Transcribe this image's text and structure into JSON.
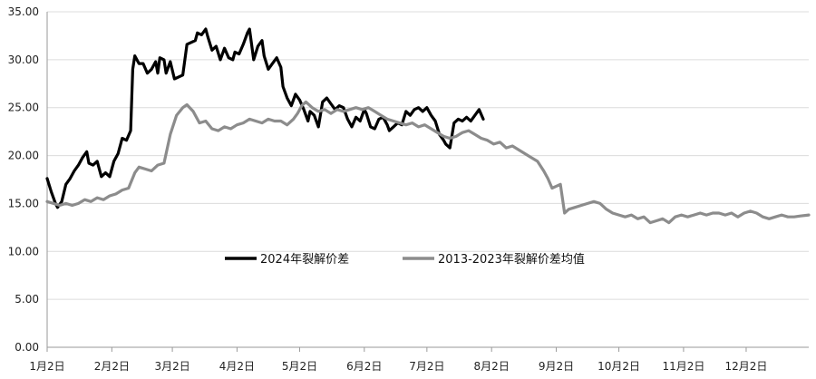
{
  "chart_data": {
    "type": "line",
    "title": "",
    "xlabel": "",
    "ylabel": "",
    "ylim": [
      0,
      35
    ],
    "yticks": [
      "0.00",
      "5.00",
      "10.00",
      "15.00",
      "20.00",
      "25.00",
      "30.00",
      "35.00"
    ],
    "xlim": [
      0,
      365
    ],
    "x_ticks": [
      {
        "label": "1月2日",
        "day": 0
      },
      {
        "label": "2月2日",
        "day": 31
      },
      {
        "label": "3月2日",
        "day": 60
      },
      {
        "label": "4月2日",
        "day": 91
      },
      {
        "label": "5月2日",
        "day": 121
      },
      {
        "label": "6月2日",
        "day": 152
      },
      {
        "label": "7月2日",
        "day": 182
      },
      {
        "label": "8月2日",
        "day": 213
      },
      {
        "label": "9月2日",
        "day": 244
      },
      {
        "label": "10月2日",
        "day": 274
      },
      {
        "label": "11月2日",
        "day": 305
      },
      {
        "label": "12月2日",
        "day": 335
      }
    ],
    "grid": "horizontal",
    "legend_position": "center",
    "series": [
      {
        "name": "2024年裂解价差",
        "color": "#000000",
        "points": [
          [
            0,
            17.6
          ],
          [
            2,
            16.2
          ],
          [
            4,
            15.0
          ],
          [
            5,
            14.6
          ],
          [
            7,
            15.2
          ],
          [
            9,
            17.0
          ],
          [
            11,
            17.6
          ],
          [
            13,
            18.4
          ],
          [
            15,
            19.0
          ],
          [
            17,
            19.8
          ],
          [
            19,
            20.4
          ],
          [
            20,
            19.2
          ],
          [
            22,
            19.0
          ],
          [
            24,
            19.4
          ],
          [
            26,
            17.8
          ],
          [
            28,
            18.2
          ],
          [
            30,
            17.8
          ],
          [
            32,
            19.4
          ],
          [
            34,
            20.2
          ],
          [
            36,
            21.8
          ],
          [
            38,
            21.6
          ],
          [
            40,
            22.6
          ],
          [
            41,
            29.0
          ],
          [
            42,
            30.4
          ],
          [
            44,
            29.6
          ],
          [
            46,
            29.6
          ],
          [
            48,
            28.6
          ],
          [
            50,
            29.0
          ],
          [
            52,
            29.8
          ],
          [
            53,
            28.6
          ],
          [
            54,
            30.2
          ],
          [
            56,
            30.0
          ],
          [
            57,
            28.6
          ],
          [
            59,
            29.8
          ],
          [
            61,
            28.0
          ],
          [
            63,
            28.2
          ],
          [
            65,
            28.4
          ],
          [
            67,
            31.6
          ],
          [
            69,
            31.8
          ],
          [
            71,
            32.0
          ],
          [
            72,
            32.8
          ],
          [
            74,
            32.6
          ],
          [
            76,
            33.2
          ],
          [
            77,
            32.4
          ],
          [
            79,
            31.0
          ],
          [
            81,
            31.4
          ],
          [
            83,
            30.0
          ],
          [
            85,
            31.2
          ],
          [
            87,
            30.2
          ],
          [
            89,
            30.0
          ],
          [
            90,
            30.8
          ],
          [
            92,
            30.6
          ],
          [
            94,
            31.6
          ],
          [
            96,
            32.8
          ],
          [
            97,
            33.2
          ],
          [
            99,
            30.0
          ],
          [
            101,
            31.4
          ],
          [
            103,
            32.0
          ],
          [
            104,
            30.4
          ],
          [
            106,
            29.0
          ],
          [
            108,
            29.6
          ],
          [
            110,
            30.2
          ],
          [
            112,
            29.2
          ],
          [
            113,
            27.2
          ],
          [
            115,
            26.0
          ],
          [
            117,
            25.2
          ],
          [
            119,
            26.4
          ],
          [
            121,
            25.8
          ],
          [
            123,
            24.8
          ],
          [
            125,
            23.6
          ],
          [
            126,
            24.6
          ],
          [
            128,
            24.2
          ],
          [
            130,
            23.0
          ],
          [
            132,
            25.6
          ],
          [
            134,
            26.0
          ],
          [
            136,
            25.4
          ],
          [
            138,
            24.8
          ],
          [
            140,
            25.2
          ],
          [
            142,
            25.0
          ],
          [
            144,
            23.8
          ],
          [
            146,
            23.0
          ],
          [
            148,
            24.0
          ],
          [
            150,
            23.6
          ],
          [
            152,
            24.8
          ],
          [
            153,
            24.4
          ],
          [
            155,
            23.0
          ],
          [
            157,
            22.8
          ],
          [
            159,
            23.8
          ],
          [
            161,
            24.0
          ],
          [
            163,
            23.2
          ],
          [
            164,
            22.6
          ],
          [
            166,
            23.0
          ],
          [
            168,
            23.4
          ],
          [
            170,
            23.2
          ],
          [
            172,
            24.6
          ],
          [
            174,
            24.2
          ],
          [
            176,
            24.8
          ],
          [
            178,
            25.0
          ],
          [
            180,
            24.6
          ],
          [
            182,
            25.0
          ],
          [
            184,
            24.2
          ],
          [
            186,
            23.6
          ],
          [
            188,
            22.2
          ],
          [
            190,
            21.6
          ],
          [
            191,
            21.2
          ],
          [
            193,
            20.8
          ],
          [
            195,
            23.4
          ],
          [
            197,
            23.8
          ],
          [
            199,
            23.6
          ],
          [
            201,
            24.0
          ],
          [
            203,
            23.6
          ],
          [
            205,
            24.2
          ],
          [
            207,
            24.8
          ],
          [
            209,
            23.8
          ]
        ]
      },
      {
        "name": "2013-2023年裂解价差均值",
        "color": "#8c8c8c",
        "points": [
          [
            0,
            15.2
          ],
          [
            3,
            15.0
          ],
          [
            6,
            14.8
          ],
          [
            9,
            15.0
          ],
          [
            12,
            14.8
          ],
          [
            15,
            15.0
          ],
          [
            18,
            15.4
          ],
          [
            21,
            15.2
          ],
          [
            24,
            15.6
          ],
          [
            27,
            15.4
          ],
          [
            30,
            15.8
          ],
          [
            33,
            16.0
          ],
          [
            36,
            16.4
          ],
          [
            39,
            16.6
          ],
          [
            42,
            18.2
          ],
          [
            44,
            18.8
          ],
          [
            47,
            18.6
          ],
          [
            50,
            18.4
          ],
          [
            53,
            19.0
          ],
          [
            56,
            19.2
          ],
          [
            59,
            22.2
          ],
          [
            62,
            24.2
          ],
          [
            65,
            25.0
          ],
          [
            67,
            25.3
          ],
          [
            70,
            24.6
          ],
          [
            73,
            23.4
          ],
          [
            76,
            23.6
          ],
          [
            79,
            22.8
          ],
          [
            82,
            22.6
          ],
          [
            85,
            23.0
          ],
          [
            88,
            22.8
          ],
          [
            91,
            23.2
          ],
          [
            94,
            23.4
          ],
          [
            97,
            23.8
          ],
          [
            100,
            23.6
          ],
          [
            103,
            23.4
          ],
          [
            106,
            23.8
          ],
          [
            109,
            23.6
          ],
          [
            112,
            23.6
          ],
          [
            115,
            23.2
          ],
          [
            118,
            23.8
          ],
          [
            120,
            24.4
          ],
          [
            122,
            25.2
          ],
          [
            124,
            25.6
          ],
          [
            127,
            25.0
          ],
          [
            130,
            24.6
          ],
          [
            133,
            24.8
          ],
          [
            136,
            24.4
          ],
          [
            139,
            24.8
          ],
          [
            142,
            24.6
          ],
          [
            145,
            24.8
          ],
          [
            148,
            25.0
          ],
          [
            151,
            24.8
          ],
          [
            154,
            25.0
          ],
          [
            157,
            24.6
          ],
          [
            160,
            24.2
          ],
          [
            163,
            23.8
          ],
          [
            166,
            23.6
          ],
          [
            169,
            23.4
          ],
          [
            172,
            23.2
          ],
          [
            175,
            23.4
          ],
          [
            178,
            23.0
          ],
          [
            181,
            23.2
          ],
          [
            184,
            22.8
          ],
          [
            187,
            22.4
          ],
          [
            190,
            22.0
          ],
          [
            193,
            21.8
          ],
          [
            196,
            22.0
          ],
          [
            199,
            22.4
          ],
          [
            202,
            22.6
          ],
          [
            205,
            22.2
          ],
          [
            208,
            21.8
          ],
          [
            211,
            21.6
          ],
          [
            214,
            21.2
          ],
          [
            217,
            21.4
          ],
          [
            220,
            20.8
          ],
          [
            223,
            21.0
          ],
          [
            226,
            20.6
          ],
          [
            229,
            20.2
          ],
          [
            232,
            19.8
          ],
          [
            235,
            19.4
          ],
          [
            238,
            18.4
          ],
          [
            240,
            17.6
          ],
          [
            242,
            16.6
          ],
          [
            244,
            16.8
          ],
          [
            246,
            17.0
          ],
          [
            248,
            14.0
          ],
          [
            250,
            14.4
          ],
          [
            253,
            14.6
          ],
          [
            256,
            14.8
          ],
          [
            259,
            15.0
          ],
          [
            262,
            15.2
          ],
          [
            265,
            15.0
          ],
          [
            268,
            14.4
          ],
          [
            271,
            14.0
          ],
          [
            274,
            13.8
          ],
          [
            277,
            13.6
          ],
          [
            280,
            13.8
          ],
          [
            283,
            13.4
          ],
          [
            286,
            13.6
          ],
          [
            289,
            13.0
          ],
          [
            292,
            13.2
          ],
          [
            295,
            13.4
          ],
          [
            298,
            13.0
          ],
          [
            301,
            13.6
          ],
          [
            304,
            13.8
          ],
          [
            307,
            13.6
          ],
          [
            310,
            13.8
          ],
          [
            313,
            14.0
          ],
          [
            316,
            13.8
          ],
          [
            319,
            14.0
          ],
          [
            322,
            14.0
          ],
          [
            325,
            13.8
          ],
          [
            328,
            14.0
          ],
          [
            331,
            13.6
          ],
          [
            334,
            14.0
          ],
          [
            337,
            14.2
          ],
          [
            340,
            14.0
          ],
          [
            343,
            13.6
          ],
          [
            346,
            13.4
          ],
          [
            349,
            13.6
          ],
          [
            352,
            13.8
          ],
          [
            355,
            13.6
          ],
          [
            358,
            13.6
          ],
          [
            361,
            13.7
          ],
          [
            365,
            13.8
          ]
        ]
      }
    ]
  }
}
